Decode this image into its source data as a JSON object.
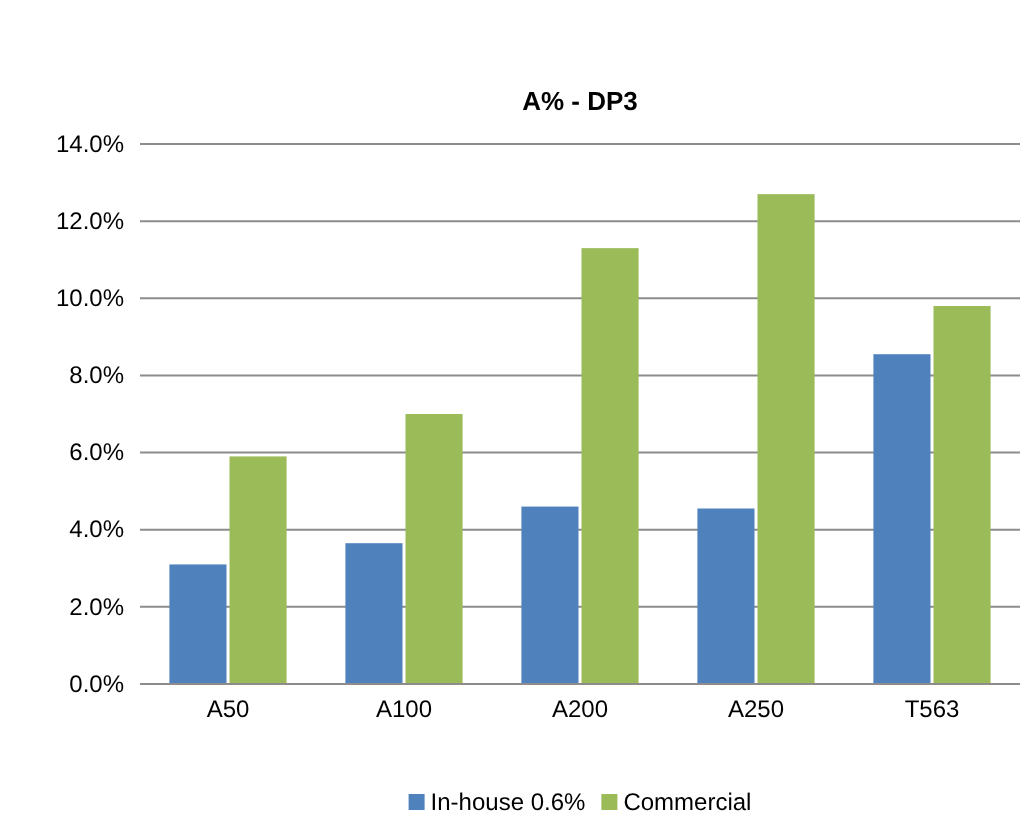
{
  "chart_data": {
    "type": "bar",
    "title": "A% - DP3",
    "categories": [
      "A50",
      "A100",
      "A200",
      "A250",
      "T563"
    ],
    "series": [
      {
        "name": "In-house 0.6%",
        "color": "#4f81bd",
        "values": [
          3.1,
          3.65,
          4.6,
          4.55,
          8.55
        ]
      },
      {
        "name": "Commercial",
        "color": "#9bbb59",
        "values": [
          5.9,
          7.0,
          11.3,
          12.7,
          9.8
        ]
      }
    ],
    "ylim": [
      0,
      14
    ],
    "yticks": [
      {
        "value": 0,
        "label": "0.0%"
      },
      {
        "value": 2,
        "label": "2.0%"
      },
      {
        "value": 4,
        "label": "4.0%"
      },
      {
        "value": 6,
        "label": "6.0%"
      },
      {
        "value": 8,
        "label": "8.0%"
      },
      {
        "value": 10,
        "label": "10.0%"
      },
      {
        "value": 12,
        "label": "12.0%"
      },
      {
        "value": 14,
        "label": "14.0%"
      }
    ],
    "grid": "y",
    "legend": "bottom"
  }
}
